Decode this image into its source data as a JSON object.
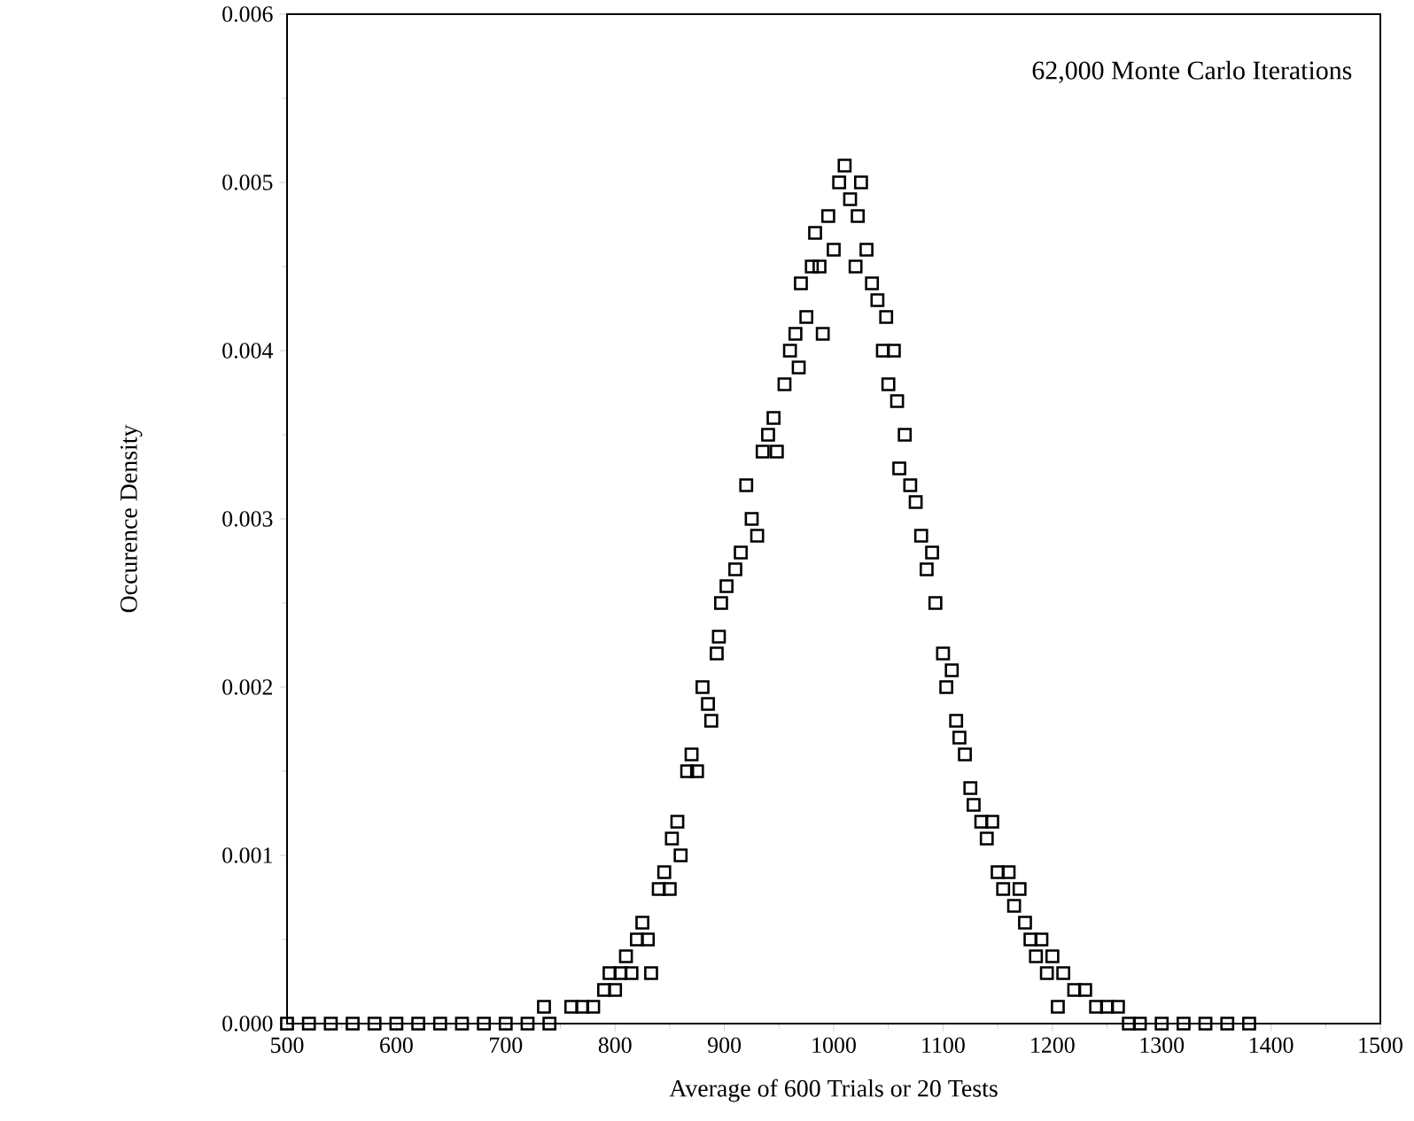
{
  "chart_data": {
    "type": "scatter",
    "xlabel": "Average of 600 Trials or 20 Tests",
    "ylabel": "Occurence Density",
    "annotations": [
      "62,000 Monte Carlo Iterations"
    ],
    "marker": "square",
    "xlim": [
      500,
      1500
    ],
    "xticks": [
      500,
      600,
      700,
      800,
      900,
      1000,
      1100,
      1200,
      1300,
      1400,
      1500
    ],
    "ylim": [
      0,
      0.006
    ],
    "yticks": [
      {
        "value": 0,
        "label": "0.000"
      },
      {
        "value": 0.001,
        "label": "0.001"
      },
      {
        "value": 0.002,
        "label": "0.002"
      },
      {
        "value": 0.003,
        "label": "0.003"
      },
      {
        "value": 0.004,
        "label": "0.004"
      },
      {
        "value": 0.005,
        "label": "0.005"
      },
      {
        "value": 0.006,
        "label": "0.006"
      }
    ],
    "series": [
      {
        "color": "#000000",
        "x": [
          500,
          520,
          540,
          560,
          580,
          600,
          620,
          640,
          660,
          680,
          700,
          720,
          740,
          735,
          760,
          770,
          780,
          790,
          795,
          800,
          805,
          810,
          815,
          820,
          825,
          830,
          833,
          840,
          845,
          850,
          852,
          857,
          860,
          866,
          870,
          875,
          880,
          885,
          888,
          893,
          895,
          897,
          902,
          910,
          915,
          920,
          925,
          930,
          935,
          940,
          945,
          948,
          955,
          960,
          965,
          968,
          970,
          975,
          980,
          983,
          987,
          990,
          995,
          1000,
          1005,
          1010,
          1015,
          1020,
          1022,
          1025,
          1030,
          1035,
          1040,
          1045,
          1048,
          1050,
          1055,
          1058,
          1060,
          1065,
          1070,
          1075,
          1080,
          1085,
          1090,
          1093,
          1100,
          1103,
          1108,
          1112,
          1115,
          1120,
          1125,
          1128,
          1135,
          1140,
          1145,
          1150,
          1155,
          1160,
          1165,
          1170,
          1175,
          1180,
          1185,
          1190,
          1195,
          1200,
          1205,
          1210,
          1220,
          1230,
          1240,
          1250,
          1260,
          1270,
          1280,
          1300,
          1320,
          1340,
          1360,
          1380
        ],
        "values": [
          0,
          0,
          0,
          0,
          0,
          0,
          0,
          0,
          0,
          0,
          0,
          0,
          0,
          0.0001,
          0.0001,
          0.0001,
          0.0001,
          0.0002,
          0.0003,
          0.0002,
          0.0003,
          0.0004,
          0.0003,
          0.0005,
          0.0006,
          0.0005,
          0.0003,
          0.0008,
          0.0009,
          0.0008,
          0.0011,
          0.0012,
          0.001,
          0.0015,
          0.0016,
          0.0015,
          0.002,
          0.0019,
          0.0018,
          0.0022,
          0.0023,
          0.0025,
          0.0026,
          0.0027,
          0.0028,
          0.0032,
          0.003,
          0.0029,
          0.0034,
          0.0035,
          0.0036,
          0.0034,
          0.0038,
          0.004,
          0.0041,
          0.0039,
          0.0044,
          0.0042,
          0.0045,
          0.0047,
          0.0045,
          0.0041,
          0.0048,
          0.0046,
          0.005,
          0.0051,
          0.0049,
          0.0045,
          0.0048,
          0.005,
          0.0046,
          0.0044,
          0.0043,
          0.004,
          0.0042,
          0.0038,
          0.004,
          0.0037,
          0.0033,
          0.0035,
          0.0032,
          0.0031,
          0.0029,
          0.0027,
          0.0028,
          0.0025,
          0.0022,
          0.002,
          0.0021,
          0.0018,
          0.0017,
          0.0016,
          0.0014,
          0.0013,
          0.0012,
          0.0011,
          0.0012,
          0.0009,
          0.0008,
          0.0009,
          0.0007,
          0.0008,
          0.0006,
          0.0005,
          0.0004,
          0.0005,
          0.0003,
          0.0004,
          0.0001,
          0.0003,
          0.0002,
          0.0002,
          0.0001,
          0.0001,
          0.0001,
          0,
          0,
          0,
          0,
          0,
          0,
          0
        ]
      }
    ]
  }
}
